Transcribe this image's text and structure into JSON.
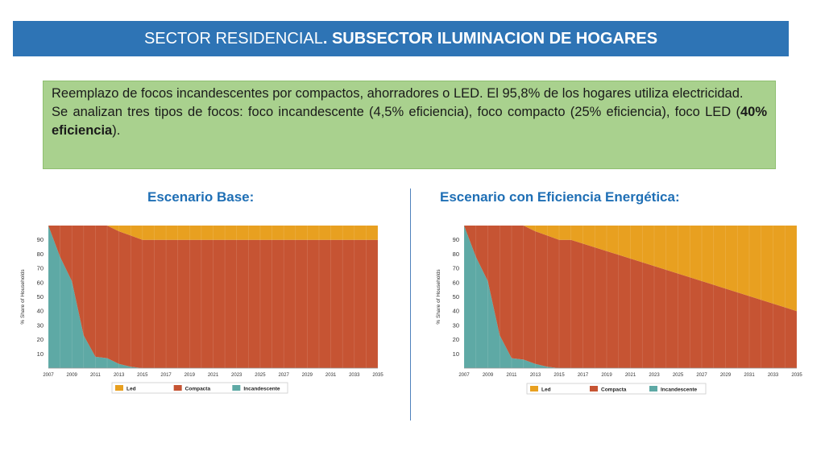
{
  "header": {
    "title_plain": "SECTOR RESIDENCIAL",
    "title_bold": ". SUBSECTOR ILUMINACION DE HOGARES"
  },
  "info": {
    "line1": "Reemplazo de focos incandescentes por compactos, ahorradores o LED. El 95,8% de los hogares utiliza electricidad.",
    "line2_start": "Se analizan tres tipos de focos: foco incandescente (4,5% eficiencia), foco compacto (25% eficiencia), foco LED (",
    "line2_bold": "40% eficiencia",
    "line2_end": ")."
  },
  "colors": {
    "led": "#e8a020",
    "compacta": "#c65433",
    "incandescente": "#5ea9a5"
  },
  "chart_data": [
    {
      "type": "area",
      "title": "Escenario Base:",
      "ylabel": "% Share of Households",
      "xlabel": "",
      "stacked": true,
      "ylim": [
        0,
        100
      ],
      "xlim": [
        2007,
        2035
      ],
      "yticks": [
        10,
        20,
        30,
        40,
        50,
        60,
        70,
        80,
        90
      ],
      "xticks": [
        2007,
        2009,
        2011,
        2013,
        2015,
        2017,
        2019,
        2021,
        2023,
        2025,
        2027,
        2029,
        2031,
        2033,
        2035
      ],
      "x": [
        2007,
        2008,
        2009,
        2010,
        2011,
        2012,
        2013,
        2014,
        2015,
        2016,
        2017,
        2035
      ],
      "series": [
        {
          "name": "Incandescente",
          "values": [
            100,
            78,
            61,
            23,
            8,
            7,
            3,
            1,
            0,
            0,
            0,
            0
          ]
        },
        {
          "name": "Compacta",
          "values": [
            0,
            22,
            39,
            77,
            92,
            93,
            93,
            92,
            90,
            90,
            90,
            90
          ]
        },
        {
          "name": "Led",
          "values": [
            0,
            0,
            0,
            0,
            0,
            0,
            4,
            7,
            10,
            10,
            10,
            10
          ]
        }
      ],
      "legend": "bottom"
    },
    {
      "type": "area",
      "title": "Escenario con Eficiencia Energética:",
      "ylabel": "% Share of Households",
      "xlabel": "",
      "stacked": true,
      "ylim": [
        0,
        100
      ],
      "xlim": [
        2007,
        2035
      ],
      "yticks": [
        10,
        20,
        30,
        40,
        50,
        60,
        70,
        80,
        90
      ],
      "xticks": [
        2007,
        2009,
        2011,
        2013,
        2015,
        2017,
        2019,
        2021,
        2023,
        2025,
        2027,
        2029,
        2031,
        2033,
        2035
      ],
      "x": [
        2007,
        2008,
        2009,
        2010,
        2011,
        2012,
        2013,
        2014,
        2015,
        2016,
        2035
      ],
      "series": [
        {
          "name": "Incandescente",
          "values": [
            100,
            78,
            61,
            23,
            7,
            6,
            3,
            1,
            0,
            0,
            0
          ]
        },
        {
          "name": "Compacta",
          "values": [
            0,
            22,
            39,
            77,
            93,
            94,
            93,
            92,
            90,
            90,
            40
          ]
        },
        {
          "name": "Led",
          "values": [
            0,
            0,
            0,
            0,
            0,
            0,
            4,
            7,
            10,
            10,
            60
          ]
        }
      ],
      "legend": "bottom"
    }
  ]
}
